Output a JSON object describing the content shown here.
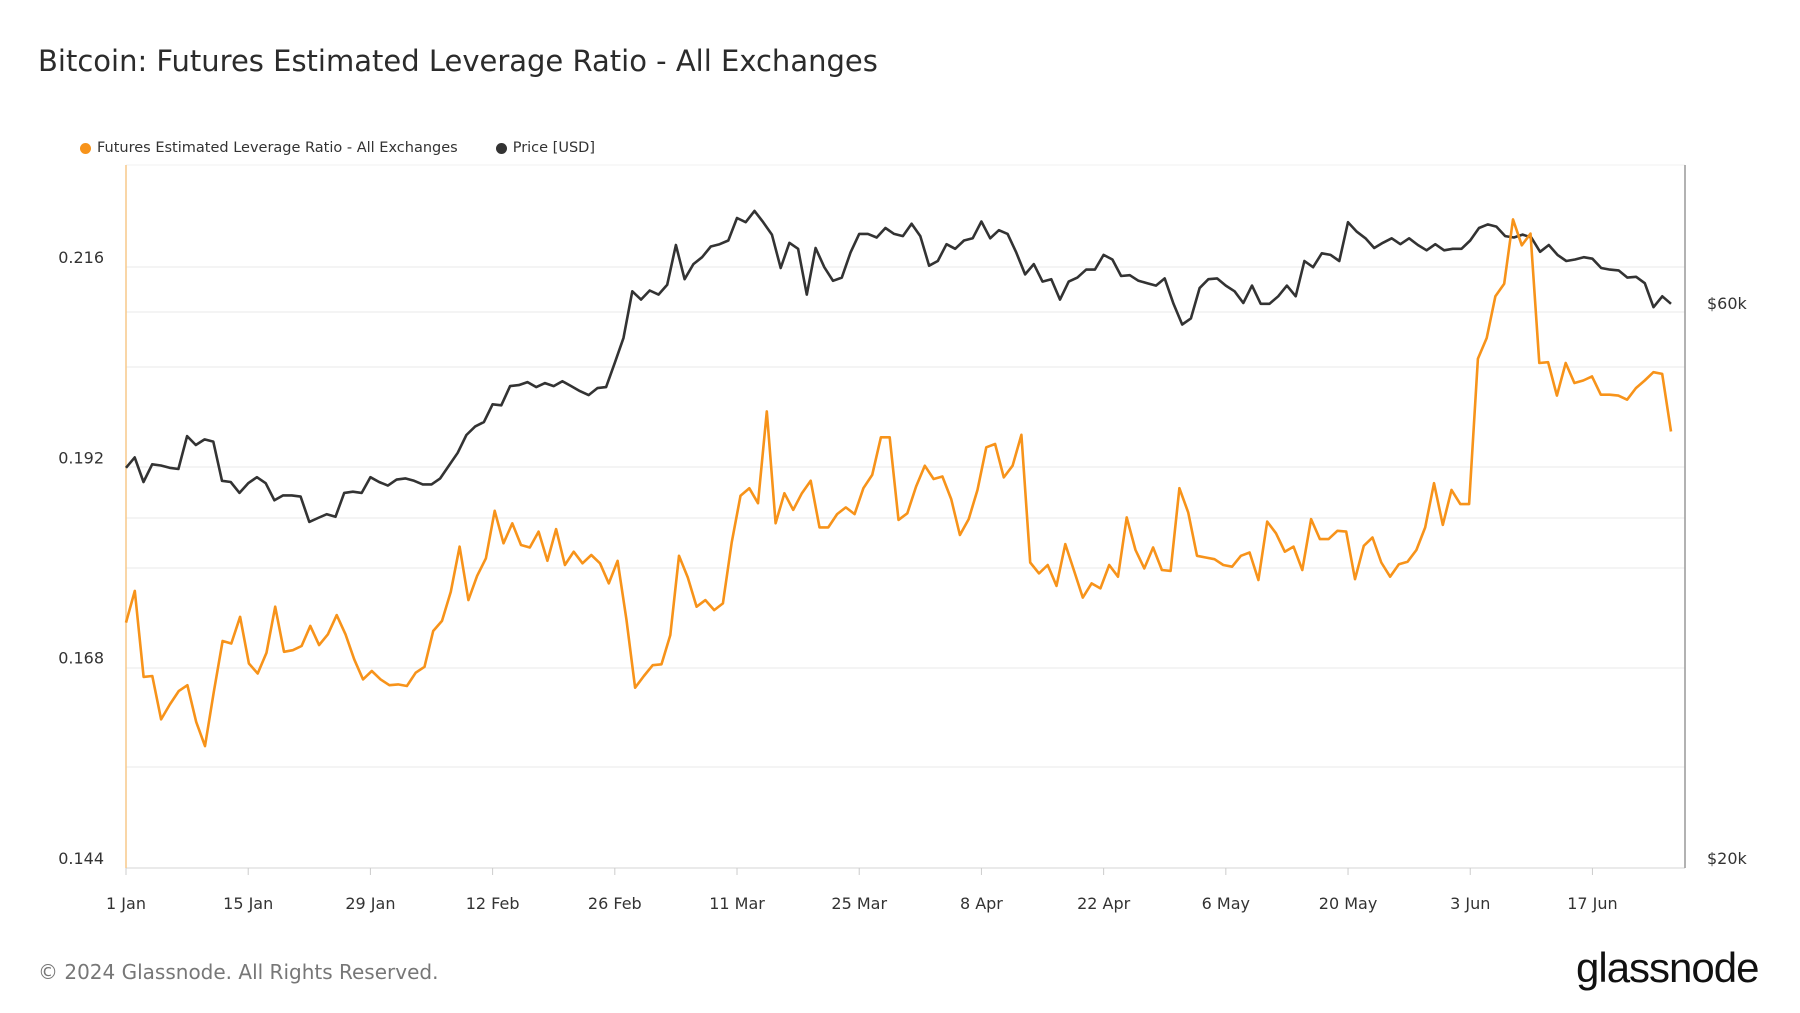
{
  "title": "Bitcoin: Futures Estimated Leverage Ratio - All Exchanges",
  "footer": "© 2024 Glassnode. All Rights Reserved.",
  "logo": "glassnode",
  "chart_data": {
    "type": "line",
    "title": "Bitcoin: Futures Estimated Leverage Ratio - All Exchanges",
    "frequency": "daily",
    "x_range": [
      "2024-01-01",
      "2024-06-26"
    ],
    "x_tick_labels": [
      "1 Jan",
      "15 Jan",
      "29 Jan",
      "12 Feb",
      "26 Feb",
      "11 Mar",
      "25 Mar",
      "8 Apr",
      "22 Apr",
      "6 May",
      "20 May",
      "3 Jun",
      "17 Jun"
    ],
    "x_tick_days": [
      0,
      14,
      28,
      42,
      56,
      70,
      84,
      98,
      112,
      126,
      140,
      154,
      168
    ],
    "left_axis": {
      "ticks": [
        0.216,
        0.192,
        0.168,
        0.144
      ],
      "tick_labels": [
        "0.216",
        "0.192",
        "0.168",
        "0.144"
      ],
      "range": [
        0.144,
        0.216
      ]
    },
    "right_axis": {
      "scale": "log",
      "ticks": [
        60000,
        20000
      ],
      "tick_labels": [
        "$60k",
        "$20k"
      ]
    },
    "grid": true,
    "legend_position": "top-left",
    "series": [
      {
        "name": "Futures Estimated Leverage Ratio - All Exchanges",
        "axis": "left",
        "color": "#f7931a",
        "values": [
          0.1722,
          0.176,
          0.1657,
          0.1658,
          0.1606,
          0.1624,
          0.164,
          0.1647,
          0.1603,
          0.1574,
          0.1639,
          0.17,
          0.1697,
          0.1729,
          0.1673,
          0.1661,
          0.1686,
          0.1741,
          0.1687,
          0.1689,
          0.1694,
          0.1718,
          0.1695,
          0.1708,
          0.1731,
          0.1708,
          0.1678,
          0.1654,
          0.1664,
          0.1654,
          0.1647,
          0.1648,
          0.1646,
          0.1662,
          0.1669,
          0.1712,
          0.1724,
          0.1759,
          0.1813,
          0.1749,
          0.1778,
          0.1799,
          0.1856,
          0.1817,
          0.1841,
          0.1815,
          0.1812,
          0.1831,
          0.1796,
          0.1834,
          0.1791,
          0.1807,
          0.1793,
          0.1803,
          0.1793,
          0.1769,
          0.1796,
          0.1726,
          0.1644,
          0.1658,
          0.1671,
          0.1672,
          0.1707,
          0.1802,
          0.1776,
          0.1741,
          0.1749,
          0.1737,
          0.1745,
          0.1818,
          0.1874,
          0.1883,
          0.1865,
          0.1975,
          0.1841,
          0.1877,
          0.1857,
          0.1877,
          0.1892,
          0.1836,
          0.1836,
          0.1852,
          0.186,
          0.1852,
          0.1883,
          0.1899,
          0.1944,
          0.1944,
          0.1845,
          0.1853,
          0.1885,
          0.191,
          0.1894,
          0.1897,
          0.187,
          0.1827,
          0.1846,
          0.1881,
          0.1932,
          0.1936,
          0.1896,
          0.191,
          0.1947,
          0.1794,
          0.1781,
          0.1791,
          0.1766,
          0.1816,
          0.1784,
          0.1752,
          0.1769,
          0.1763,
          0.1791,
          0.1777,
          0.1848,
          0.1809,
          0.1787,
          0.1812,
          0.1785,
          0.1784,
          0.1883,
          0.1854,
          0.1802,
          0.18,
          0.1798,
          0.1791,
          0.1789,
          0.1802,
          0.1806,
          0.1773,
          0.1843,
          0.1829,
          0.1807,
          0.1813,
          0.1785,
          0.1846,
          0.1822,
          0.1822,
          0.1832,
          0.1831,
          0.1774,
          0.1814,
          0.1824,
          0.1794,
          0.1777,
          0.1792,
          0.1795,
          0.1809,
          0.1836,
          0.1889,
          0.1839,
          0.1881,
          0.1864,
          0.1864,
          0.2038,
          0.2063,
          0.2113,
          0.2128,
          0.2205,
          0.2174,
          0.2188,
          0.2033,
          0.2034,
          0.1994,
          0.2033,
          0.2009,
          0.2012,
          0.2017,
          0.1995,
          0.1995,
          0.1994,
          0.1989,
          0.2003,
          0.2012,
          0.2022,
          0.202,
          0.1951
        ]
      },
      {
        "name": "Price [USD]",
        "axis": "right",
        "color": "#333333",
        "values": [
          43300,
          44200,
          42100,
          43600,
          43500,
          43300,
          43200,
          46100,
          45300,
          45800,
          45600,
          42200,
          42100,
          41200,
          42000,
          42500,
          42000,
          40600,
          41000,
          41000,
          40900,
          38900,
          39200,
          39500,
          39300,
          41200,
          41300,
          41200,
          42500,
          42100,
          41800,
          42300,
          42400,
          42200,
          41900,
          41900,
          42400,
          43500,
          44600,
          46200,
          47000,
          47400,
          49100,
          49000,
          50900,
          51000,
          51300,
          50800,
          51200,
          50900,
          51400,
          50900,
          50400,
          50000,
          50700,
          50800,
          53300,
          56000,
          61400,
          60400,
          61500,
          61000,
          62200,
          67300,
          62900,
          64800,
          65700,
          67100,
          67400,
          67900,
          71000,
          70400,
          72000,
          70400,
          68700,
          64300,
          67600,
          66800,
          61000,
          66900,
          64400,
          62700,
          63100,
          66300,
          68800,
          68800,
          68300,
          69600,
          68800,
          68500,
          70200,
          68500,
          64600,
          65200,
          67400,
          66800,
          67900,
          68200,
          70500,
          68200,
          69300,
          68800,
          66300,
          63500,
          64800,
          62600,
          62900,
          60400,
          62600,
          63100,
          64100,
          64100,
          66000,
          65400,
          63300,
          63400,
          62700,
          62400,
          62100,
          63000,
          59900,
          57500,
          58200,
          61800,
          62900,
          63000,
          62100,
          61400,
          60000,
          62100,
          59900,
          59900,
          60800,
          62100,
          60800,
          65200,
          64400,
          66200,
          66000,
          65200,
          70400,
          69100,
          68200,
          66900,
          67600,
          68200,
          67400,
          68200,
          67300,
          66600,
          67400,
          66600,
          66800,
          66800,
          67900,
          69600,
          70100,
          69800,
          68500,
          68300,
          68700,
          68300,
          66400,
          67300,
          66000,
          65200,
          65400,
          65700,
          65500,
          64300,
          64100,
          64000,
          63100,
          63200,
          62400,
          59500,
          60800,
          59900
        ]
      }
    ]
  }
}
